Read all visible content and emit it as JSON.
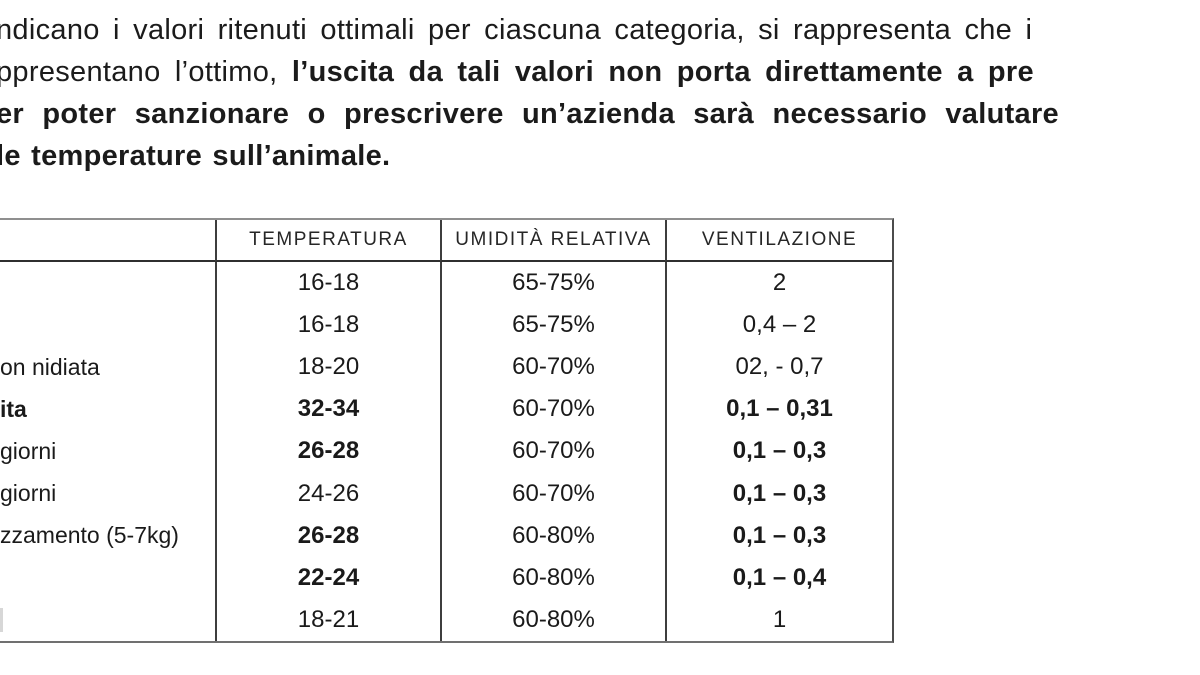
{
  "paragraph": {
    "line1_regular": "ndicano i valori ritenuti ottimali per ciascuna categoria, si rappresenta che i",
    "line2_regular": "ppresentano l’ottimo, ",
    "line2_bold": "l’uscita da tali valori non porta direttamente a pre",
    "line3_bold": "er poter sanzionare o prescrivere un’azienda sarà necessario valutare",
    "line4_bold": "le temperature sull’animale."
  },
  "table": {
    "headers": {
      "category": "",
      "temperatura": "TEMPERATURA",
      "umidita": "UMIDITÀ RELATIVA",
      "ventilazione": "VENTILAZIONE"
    },
    "rows": [
      {
        "category": "",
        "temperatura": "16-18",
        "umidita": "65-75%",
        "ventilazione": "2"
      },
      {
        "category": "",
        "temperatura": "16-18",
        "umidita": "65-75%",
        "ventilazione": "0,4 – 2"
      },
      {
        "category": "on nidiata",
        "temperatura": "18-20",
        "umidita": "60-70%",
        "ventilazione": "02, - 0,7"
      },
      {
        "category": "ita",
        "temperatura": "32-34",
        "umidita": "60-70%",
        "ventilazione": "0,1 – 0,31"
      },
      {
        "category": "giorni",
        "temperatura": "26-28",
        "umidita": "60-70%",
        "ventilazione": "0,1 – 0,3"
      },
      {
        "category": "giorni",
        "temperatura": "24-26",
        "umidita": "60-70%",
        "ventilazione": "0,1 – 0,3"
      },
      {
        "category": "zzamento (5-7kg)",
        "temperatura": "26-28",
        "umidita": "60-80%",
        "ventilazione": "0,1 – 0,3"
      },
      {
        "category": "",
        "temperatura": "22-24",
        "umidita": "60-80%",
        "ventilazione": "0,1 – 0,4"
      },
      {
        "category": "",
        "temperatura": "18-21",
        "umidita": "60-80%",
        "ventilazione": "1"
      }
    ]
  },
  "colors": {
    "background": "#ffffff",
    "text": "#1a1a1a",
    "table_border": "#3d3d3d"
  }
}
